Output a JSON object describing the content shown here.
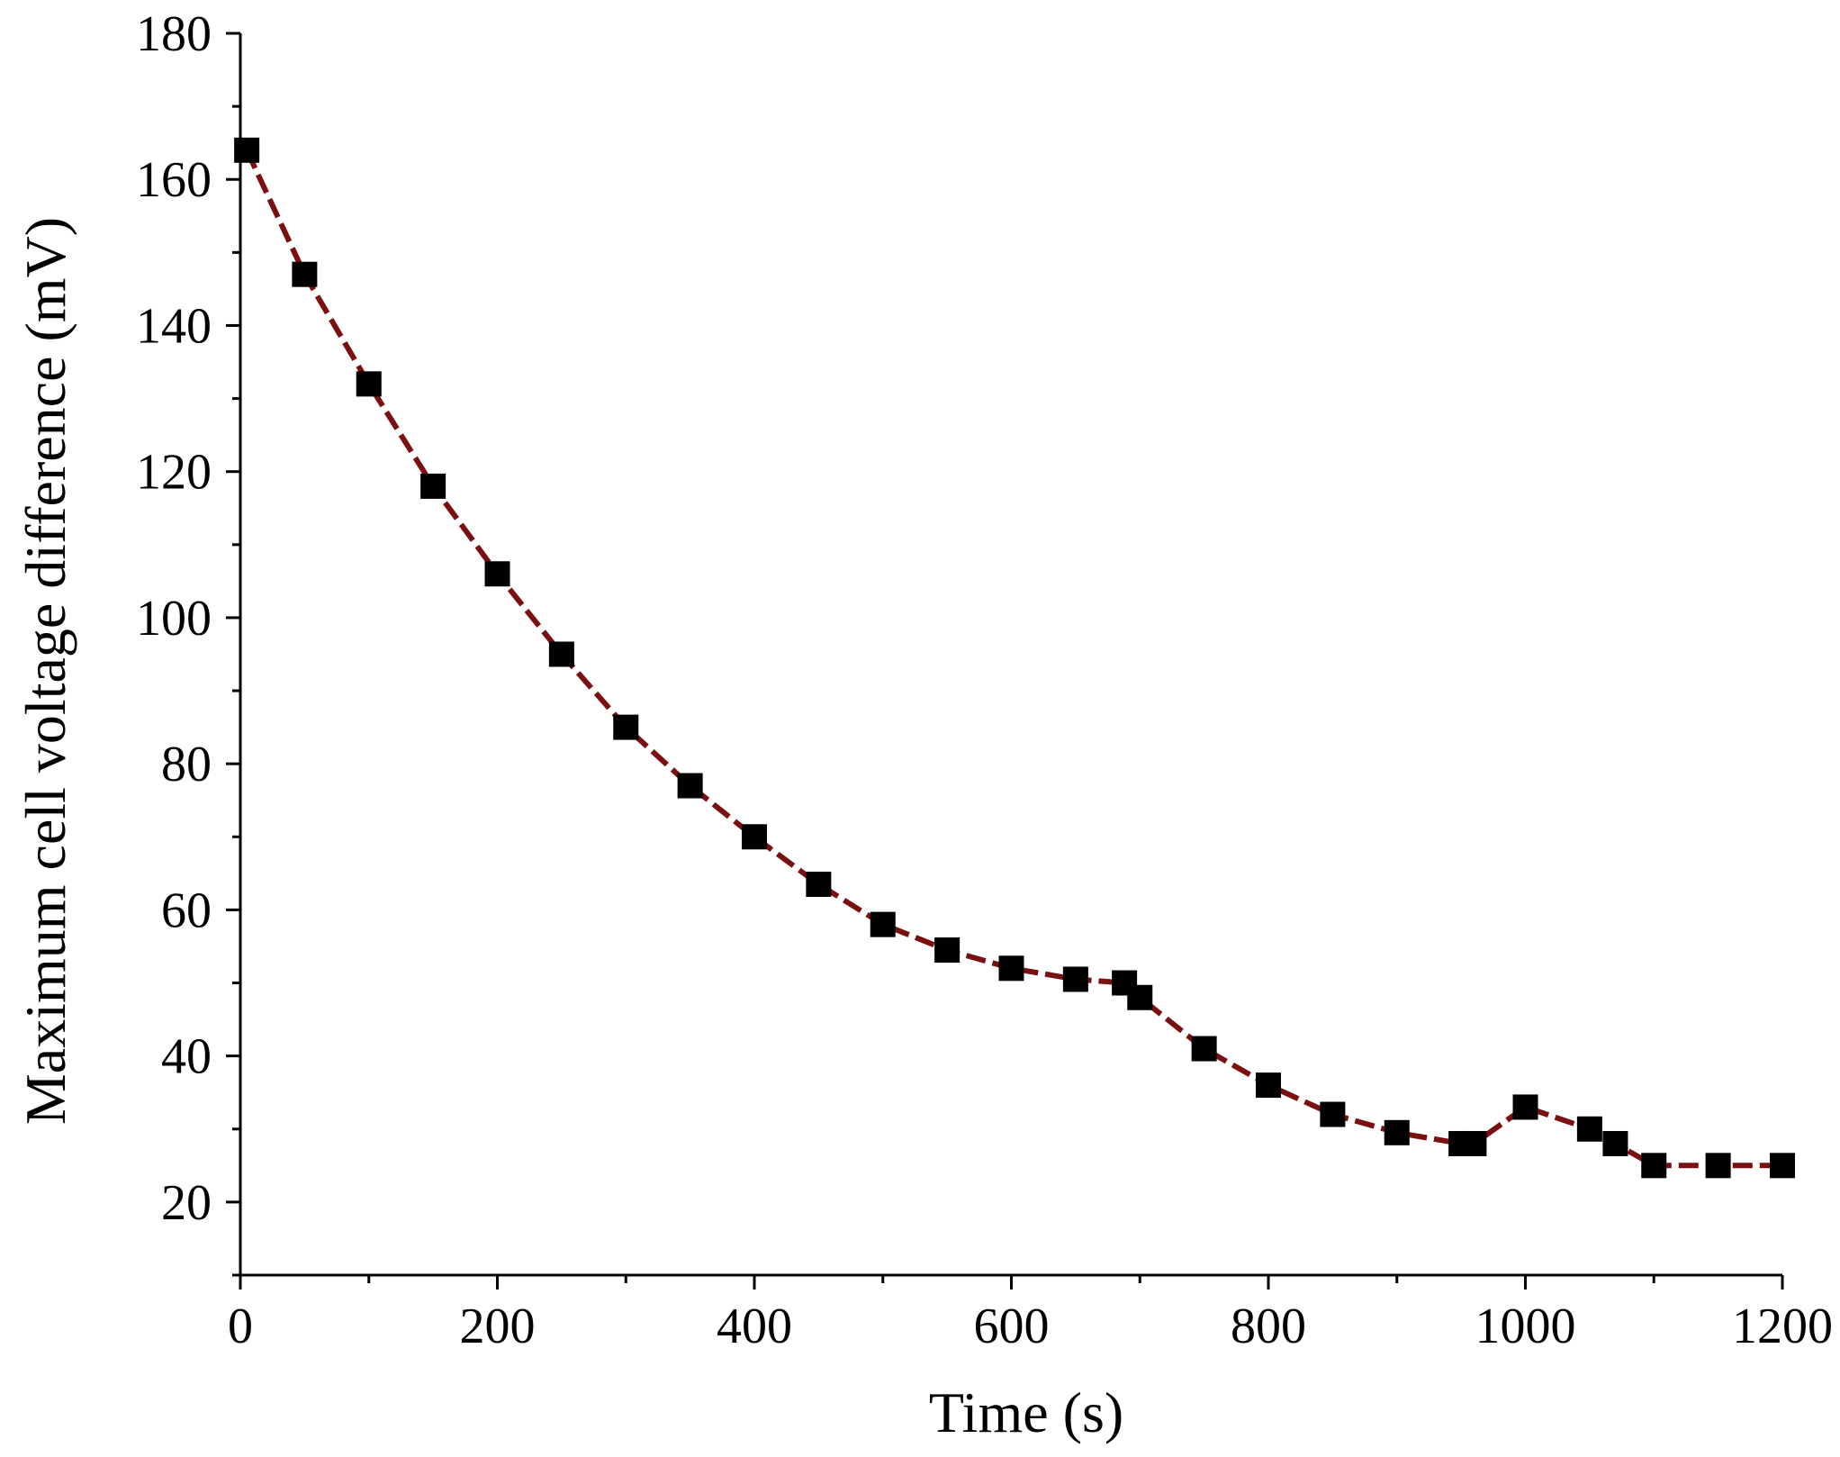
{
  "chart_data": {
    "type": "line",
    "title": "",
    "xlabel": "Time (s)",
    "ylabel": "Maximum cell voltage difference (mV)",
    "xlim": [
      0,
      1200
    ],
    "ylim": [
      10,
      180
    ],
    "x_ticks": [
      0,
      200,
      400,
      600,
      800,
      1000,
      1200
    ],
    "y_ticks": [
      20,
      40,
      60,
      80,
      100,
      120,
      140,
      160,
      180
    ],
    "x_tick_labels": [
      "0",
      "200",
      "400",
      "600",
      "800",
      "1000",
      "1200"
    ],
    "y_tick_labels": [
      "20",
      "40",
      "60",
      "80",
      "100",
      "120",
      "140",
      "160",
      "180"
    ],
    "grid": false,
    "legend": "none",
    "line_color": "#7a1010",
    "line_style": "dashed",
    "marker": "square",
    "marker_color": "#000000",
    "series": [
      {
        "x": [
          5,
          50,
          100,
          150,
          200,
          250,
          300,
          350,
          400,
          450,
          500,
          550,
          600,
          650,
          688,
          700,
          750,
          800,
          850,
          900,
          950,
          960,
          1000,
          1050,
          1070,
          1100,
          1150,
          1200
        ],
        "y": [
          164,
          147,
          132,
          118,
          106,
          95,
          85,
          77,
          70,
          63.5,
          58,
          54.5,
          52,
          50.5,
          50,
          48,
          41,
          36,
          32,
          29.5,
          28,
          28,
          33,
          30,
          28,
          25,
          25,
          25
        ]
      }
    ]
  }
}
